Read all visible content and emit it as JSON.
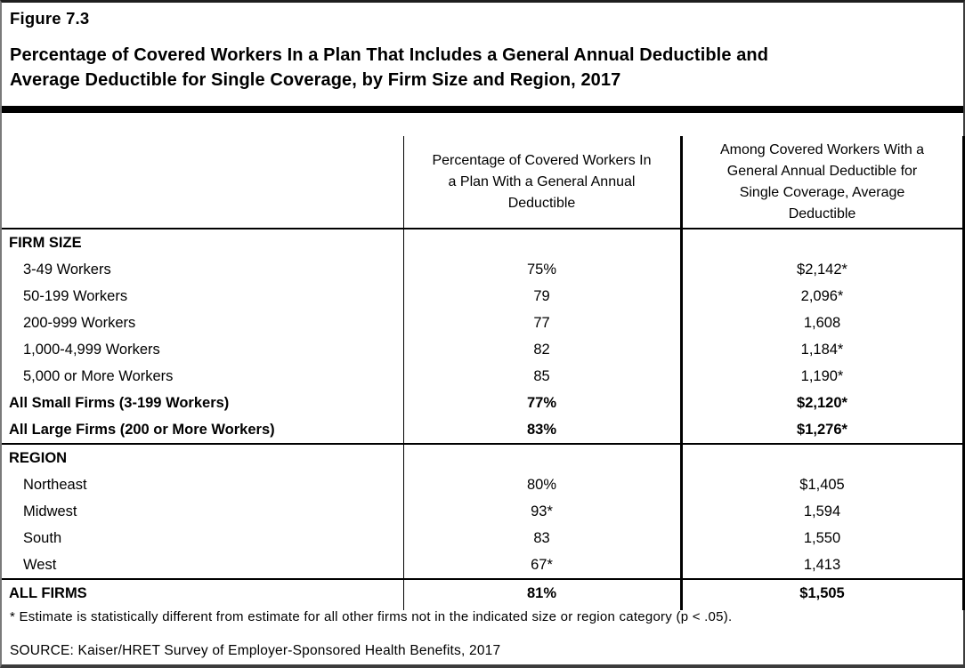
{
  "figure": {
    "label": "Figure 7.3",
    "title": "Percentage of Covered Workers In a Plan That Includes a General Annual Deductible and\nAverage Deductible for Single Coverage, by Firm Size and Region, 2017"
  },
  "table": {
    "col_headers": {
      "category": "",
      "pct": "Percentage of Covered Workers In\na Plan With a General Annual\nDeductible",
      "avg": "Among Covered Workers With a\nGeneral Annual Deductible for\nSingle Coverage, Average\nDeductible"
    },
    "rows": [
      {
        "label": "FIRM SIZE",
        "pct": "",
        "avg": "",
        "type": "section",
        "divider_below": false
      },
      {
        "label": "3-49 Workers",
        "pct": "75%",
        "avg": "$2,142*",
        "type": "indent",
        "divider_below": false
      },
      {
        "label": "50-199 Workers",
        "pct": "79",
        "avg": "2,096*",
        "type": "indent",
        "divider_below": false
      },
      {
        "label": "200-999 Workers",
        "pct": "77",
        "avg": "1,608",
        "type": "indent",
        "divider_below": false
      },
      {
        "label": "1,000-4,999 Workers",
        "pct": "82",
        "avg": "1,184*",
        "type": "indent",
        "divider_below": false
      },
      {
        "label": "5,000 or More Workers",
        "pct": "85",
        "avg": "1,190*",
        "type": "indent",
        "divider_below": false
      },
      {
        "label": "All Small Firms (3-199 Workers)",
        "pct": "77%",
        "avg": "$2,120*",
        "type": "bold",
        "divider_below": false
      },
      {
        "label": "All Large Firms (200 or More Workers)",
        "pct": "83%",
        "avg": "$1,276*",
        "type": "bold",
        "divider_below": true
      },
      {
        "label": "REGION",
        "pct": "",
        "avg": "",
        "type": "section",
        "divider_below": false
      },
      {
        "label": "Northeast",
        "pct": "80%",
        "avg": "$1,405",
        "type": "indent",
        "divider_below": false
      },
      {
        "label": "Midwest",
        "pct": "93*",
        "avg": "1,594",
        "type": "indent",
        "divider_below": false
      },
      {
        "label": "South",
        "pct": "83",
        "avg": "1,550",
        "type": "indent",
        "divider_below": false
      },
      {
        "label": "West",
        "pct": "67*",
        "avg": "1,413",
        "type": "indent",
        "divider_below": true
      },
      {
        "label": "ALL FIRMS",
        "pct": "81%",
        "avg": "$1,505",
        "type": "bold",
        "divider_below": false
      }
    ]
  },
  "footnote": "* Estimate is statistically different from estimate for all other firms not in the indicated size or region category (p < .05).",
  "source": "SOURCE: Kaiser/HRET Survey of Employer-Sponsored Health Benefits, 2017"
}
